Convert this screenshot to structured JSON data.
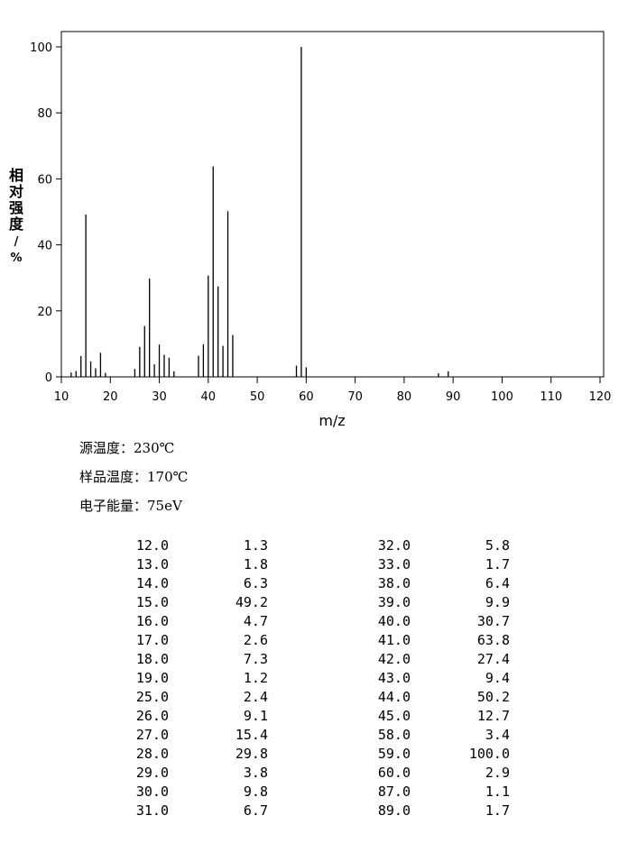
{
  "chart_data": {
    "type": "bar",
    "x_label": "m/z",
    "y_label": "相对强度/%",
    "x": [
      12,
      13,
      14,
      15,
      16,
      17,
      18,
      19,
      25,
      26,
      27,
      28,
      29,
      30,
      31,
      32,
      33,
      38,
      39,
      40,
      41,
      42,
      43,
      44,
      45,
      58,
      59,
      60,
      87,
      89
    ],
    "values": [
      1.3,
      1.8,
      6.3,
      49.2,
      4.7,
      2.6,
      7.3,
      1.2,
      2.4,
      9.1,
      15.4,
      29.8,
      3.8,
      9.8,
      6.7,
      5.8,
      1.7,
      6.4,
      9.9,
      30.7,
      63.8,
      27.4,
      9.4,
      50.2,
      12.7,
      3.4,
      100,
      2.9,
      1.1,
      1.7
    ],
    "color": "#000000",
    "xlim": [
      10,
      120
    ],
    "xticks": [
      10,
      20,
      30,
      40,
      50,
      60,
      70,
      80,
      90,
      100,
      110,
      120
    ],
    "ylim": [
      0,
      100
    ],
    "yticks": [
      0,
      20,
      40,
      60,
      80,
      100
    ]
  },
  "notes": [
    "源温度：230℃",
    "样品温度：170℃",
    "电子能量：75eV"
  ],
  "table": {
    "rows": [
      [
        "12.0",
        "1.3"
      ],
      [
        "13.0",
        "1.8"
      ],
      [
        "14.0",
        "6.3"
      ],
      [
        "15.0",
        "49.2"
      ],
      [
        "16.0",
        "4.7"
      ],
      [
        "17.0",
        "2.6"
      ],
      [
        "18.0",
        "7.3"
      ],
      [
        "19.0",
        "1.2"
      ],
      [
        "25.0",
        "2.4"
      ],
      [
        "26.0",
        "9.1"
      ],
      [
        "27.0",
        "15.4"
      ],
      [
        "28.0",
        "29.8"
      ],
      [
        "29.0",
        "3.8"
      ],
      [
        "30.0",
        "9.8"
      ],
      [
        "31.0",
        "6.7"
      ],
      [
        "32.0",
        "5.8"
      ],
      [
        "33.0",
        "1.7"
      ],
      [
        "38.0",
        "6.4"
      ],
      [
        "39.0",
        "9.9"
      ],
      [
        "40.0",
        "30.7"
      ],
      [
        "41.0",
        "63.8"
      ],
      [
        "42.0",
        "27.4"
      ],
      [
        "43.0",
        "9.4"
      ],
      [
        "44.0",
        "50.2"
      ],
      [
        "45.0",
        "12.7"
      ],
      [
        "58.0",
        "3.4"
      ],
      [
        "59.0",
        "100.0"
      ],
      [
        "60.0",
        "2.9"
      ],
      [
        "87.0",
        "1.1"
      ],
      [
        "89.0",
        "1.7"
      ]
    ]
  }
}
